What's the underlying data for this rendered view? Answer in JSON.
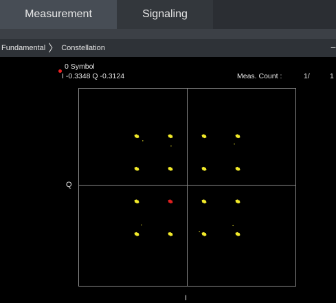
{
  "tabs": [
    {
      "label": "Measurement",
      "active": true
    },
    {
      "label": "Signaling",
      "active": false
    }
  ],
  "breadcrumb": {
    "root": "Fundamental",
    "separator": "〉",
    "current": "Constellation",
    "collapse_glyph": "−"
  },
  "readout": {
    "symbol_label": "0 Symbol",
    "iq_values": "I -0.3348 Q -0.3124",
    "meas_count_label": "Meas. Count :",
    "meas_count_value": "1/",
    "meas_count_total": "1"
  },
  "axes": {
    "q_label": "Q",
    "i_label": "I"
  },
  "colors": {
    "symbol_color": "#f2ea2a",
    "selected_symbol_color": "#e02020",
    "axis_color": "#9a9a9a",
    "tab_active": "#474d55",
    "tab_inactive": "#33373c"
  },
  "chart_data": {
    "type": "scatter",
    "title": "",
    "xlabel": "I",
    "ylabel": "Q",
    "modulation_points": [
      {
        "i": -0.75,
        "q": 0.75
      },
      {
        "i": -0.25,
        "q": 0.75
      },
      {
        "i": 0.25,
        "q": 0.75
      },
      {
        "i": 0.75,
        "q": 0.75
      },
      {
        "i": -0.75,
        "q": 0.25
      },
      {
        "i": -0.25,
        "q": 0.25
      },
      {
        "i": 0.25,
        "q": 0.25
      },
      {
        "i": 0.75,
        "q": 0.25
      },
      {
        "i": -0.75,
        "q": -0.25
      },
      {
        "i": -0.25,
        "q": -0.25
      },
      {
        "i": 0.25,
        "q": -0.25
      },
      {
        "i": 0.75,
        "q": -0.25
      },
      {
        "i": -0.75,
        "q": -0.75
      },
      {
        "i": -0.25,
        "q": -0.75
      },
      {
        "i": 0.25,
        "q": -0.75
      },
      {
        "i": 0.75,
        "q": -0.75
      }
    ],
    "selected_point": {
      "i": -0.3348,
      "q": -0.3124
    },
    "xlim": [
      -1,
      1
    ],
    "ylim": [
      -1,
      1
    ],
    "grid": false
  }
}
